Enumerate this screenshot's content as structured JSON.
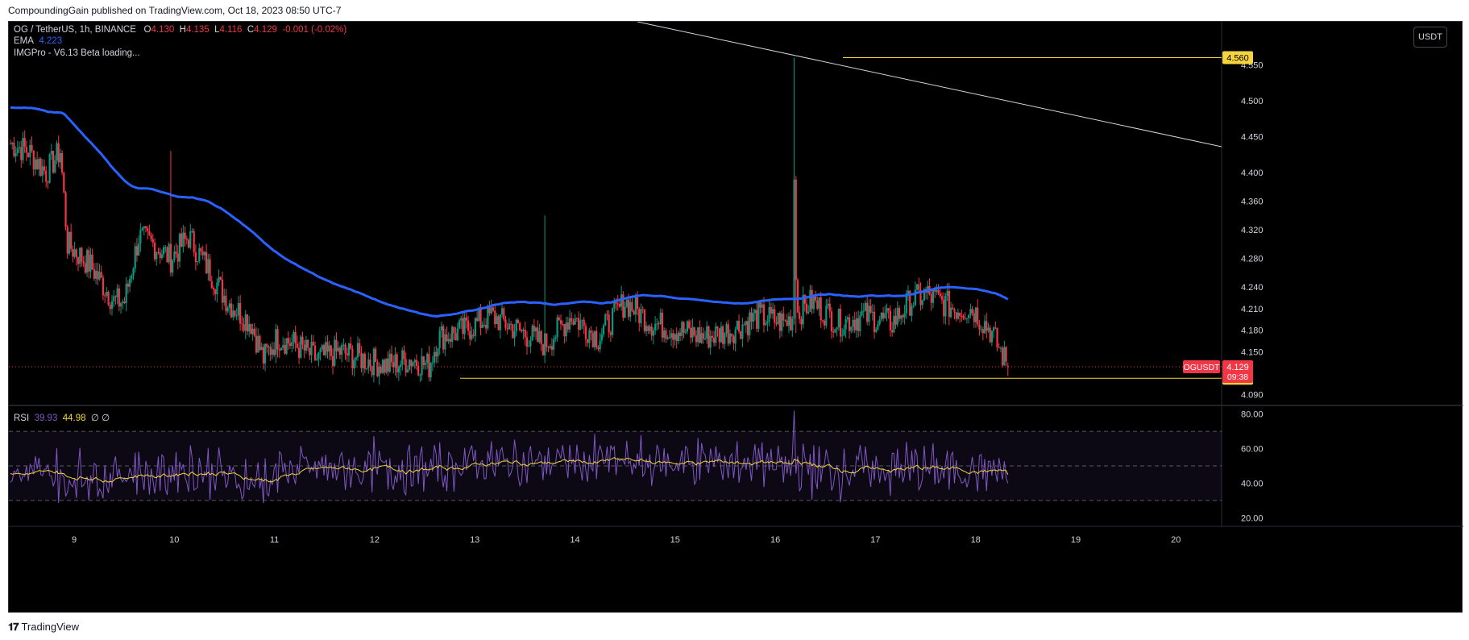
{
  "header": {
    "published": "CompoundingGain published on TradingView.com, Oct 18, 2023 08:50 UTC-7"
  },
  "legend": {
    "symbol": "OG / TetherUS, 1h, BINANCE",
    "o_label": "O",
    "o_value": "4.130",
    "h_label": "H",
    "h_value": "4.135",
    "l_label": "L",
    "l_value": "4.116",
    "c_label": "C",
    "c_value": "4.129",
    "change": "-0.001 (-0.02%)",
    "ema_label": "EMA",
    "ema_value": "4.223",
    "imgpro": "IMGPro - V6.13 Beta loading..."
  },
  "rsi_legend": {
    "label": "RSI",
    "value": "39.93",
    "ma_value": "44.98",
    "extra": "∅ ∅"
  },
  "currency_button": "USDT",
  "footer": {
    "brand": "TradingView"
  },
  "colors": {
    "up": "#089981",
    "down": "#f23645",
    "ema": "#2962ff",
    "level": "#f5d43c",
    "rsi": "#7e57c2",
    "rsi_ma": "#f5d43c",
    "trendline": "#d1d4dc",
    "price_tag": "#f23645"
  },
  "chart_data": {
    "type": "candlestick",
    "price_axis": {
      "ticks": [
        "4.550",
        "4.500",
        "4.450",
        "4.400",
        "4.360",
        "4.320",
        "4.280",
        "4.240",
        "4.210",
        "4.180",
        "4.150",
        "4.090"
      ],
      "range": [
        4.075,
        4.61
      ]
    },
    "time_axis": {
      "ticks": [
        "9",
        "10",
        "11",
        "12",
        "13",
        "14",
        "15",
        "16",
        "17",
        "18",
        "19",
        "20"
      ]
    },
    "levels": [
      {
        "price": 4.56,
        "label": "4.560"
      },
      {
        "price": 4.113,
        "label": "4.113"
      }
    ],
    "current_price": {
      "symbol": "OGUSDT",
      "price": "4.129",
      "countdown": "09:38"
    },
    "ema_last": 4.223,
    "ohlc_last": {
      "open": 4.13,
      "high": 4.135,
      "low": 4.116,
      "close": 4.129
    },
    "rsi": {
      "ticks": [
        "80.00",
        "60.00",
        "40.00",
        "20.00"
      ],
      "range": [
        15,
        85
      ],
      "bands": [
        70,
        50,
        30
      ],
      "last": 39.93,
      "ma_last": 44.98
    }
  }
}
